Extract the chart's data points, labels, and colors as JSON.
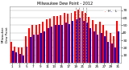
{
  "title": "Milwaukee Dew Point - 2012",
  "bar_width": 0.45,
  "background_color": "#ffffff",
  "plot_bg_color": "#ffffff",
  "grid_color": "#aaaaaa",
  "high_color": "#ff0000",
  "low_color": "#0000cc",
  "high_values": [
    28,
    22,
    20,
    20,
    35,
    46,
    50,
    50,
    52,
    55,
    58,
    59,
    62,
    62,
    63,
    67,
    65,
    67,
    69,
    71,
    69,
    67,
    61,
    57,
    52,
    55,
    50,
    43,
    40,
    36,
    56
  ],
  "low_values": [
    16,
    14,
    12,
    10,
    22,
    34,
    38,
    38,
    40,
    42,
    46,
    48,
    50,
    50,
    50,
    54,
    52,
    56,
    58,
    60,
    56,
    54,
    46,
    42,
    38,
    40,
    36,
    28,
    26,
    20,
    42
  ],
  "ylim": [
    0,
    75
  ],
  "yticks": [
    10,
    20,
    30,
    40,
    50,
    60,
    70
  ],
  "ytick_labels": [
    "10",
    "20",
    "30",
    "40",
    "50",
    "60",
    "70"
  ],
  "num_days": 31,
  "dashed_vlines": [
    19,
    20,
    21,
    22
  ],
  "xtick_step": 2
}
